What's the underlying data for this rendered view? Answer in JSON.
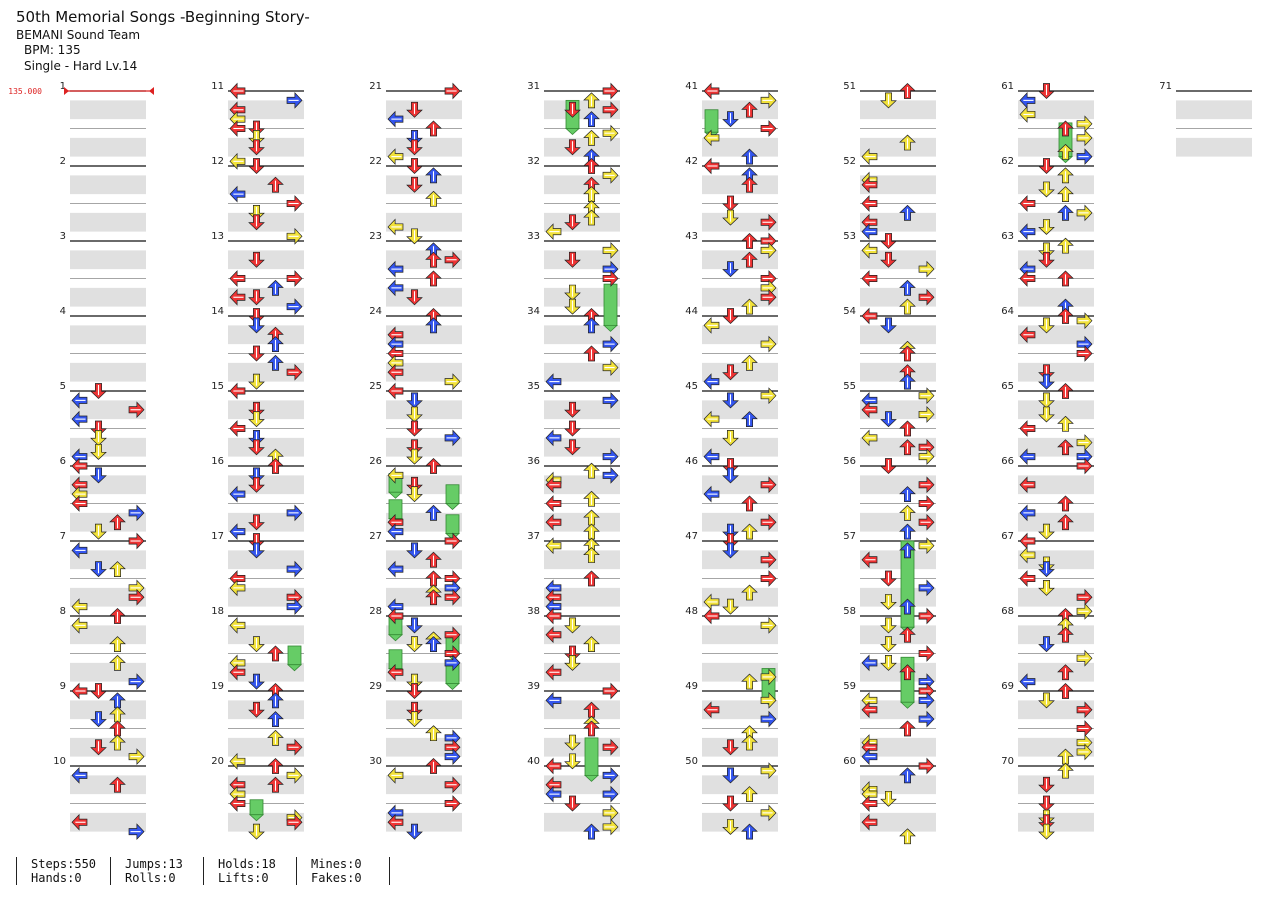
{
  "song": {
    "title": "50th Memorial Songs -Beginning Story-",
    "artist": "BEMANI Sound Team",
    "bpm_label": "BPM: 135",
    "difficulty_label": "Single - Hard  Lv.14"
  },
  "bpm_marker": {
    "value": "135.000",
    "measure": 1
  },
  "colors": {
    "left": "#ee3333",
    "down": "#3355ee",
    "up": "#ee3333",
    "right": "#ee3333",
    "quarter_red": "#ee3333",
    "eighth_blue": "#3355ee",
    "sixteenth_yellow": "#f2e23a",
    "hold": "#66cc66",
    "band": "#e0e0e0",
    "bpm": "#dd2222"
  },
  "chart": {
    "total_measures": 71,
    "measures_per_column": 10,
    "measure_labels": [
      "1",
      "2",
      "3",
      "4",
      "5",
      "6",
      "7",
      "8",
      "9",
      "10",
      "11",
      "12",
      "13",
      "14",
      "15",
      "16",
      "17",
      "18",
      "19",
      "20",
      "21",
      "22",
      "23",
      "24",
      "25",
      "26",
      "27",
      "28",
      "29",
      "30",
      "31",
      "32",
      "33",
      "34",
      "35",
      "36",
      "37",
      "38",
      "39",
      "40",
      "41",
      "42",
      "43",
      "44",
      "45",
      "46",
      "47",
      "48",
      "49",
      "50",
      "51",
      "52",
      "53",
      "54",
      "55",
      "56",
      "57",
      "58",
      "59",
      "60",
      "61",
      "62",
      "63",
      "64",
      "65",
      "66",
      "67",
      "68",
      "69",
      "70",
      "71"
    ],
    "holds": [
      {
        "measure": 31,
        "beat": 0.5,
        "length": 1.5,
        "lane": 1
      },
      {
        "measure": 41,
        "beat": 1.0,
        "length": 1.2,
        "lane": 0
      },
      {
        "measure": 61,
        "beat": 1.7,
        "length": 1.8,
        "lane": 2
      },
      {
        "measure": 33,
        "beat": 2.3,
        "length": 2.2,
        "lane": 3
      },
      {
        "measure": 26,
        "beat": 0.4,
        "length": 1.0,
        "lane": 0
      },
      {
        "measure": 26,
        "beat": 1.0,
        "length": 1.0,
        "lane": 3
      },
      {
        "measure": 26,
        "beat": 1.8,
        "length": 1.0,
        "lane": 0
      },
      {
        "measure": 26,
        "beat": 2.6,
        "length": 1.0,
        "lane": 3
      },
      {
        "measure": 28,
        "beat": 0.0,
        "length": 1.0,
        "lane": 0
      },
      {
        "measure": 28,
        "beat": 1.0,
        "length": 1.0,
        "lane": 3
      },
      {
        "measure": 28,
        "beat": 1.8,
        "length": 1.0,
        "lane": 0
      },
      {
        "measure": 28,
        "beat": 2.6,
        "length": 1.0,
        "lane": 3
      },
      {
        "measure": 18,
        "beat": 1.6,
        "length": 1.0,
        "lane": 3
      },
      {
        "measure": 20,
        "beat": 1.8,
        "length": 0.8,
        "lane": 1
      },
      {
        "measure": 39,
        "beat": 2.5,
        "length": 2.0,
        "lane": 2
      },
      {
        "measure": 48,
        "beat": 2.8,
        "length": 1.6,
        "lane": 3
      },
      {
        "measure": 57,
        "beat": 0.0,
        "length": 4.6,
        "lane": 2
      },
      {
        "measure": 58,
        "beat": 2.2,
        "length": 2.4,
        "lane": 2
      }
    ]
  },
  "stats": {
    "steps": "Steps:550",
    "hands": "Hands:0",
    "jumps": "Jumps:13",
    "rolls": "Rolls:0",
    "holds": "Holds:18",
    "lifts": "Lifts:0",
    "mines": "Mines:0",
    "fakes": "Fakes:0"
  }
}
